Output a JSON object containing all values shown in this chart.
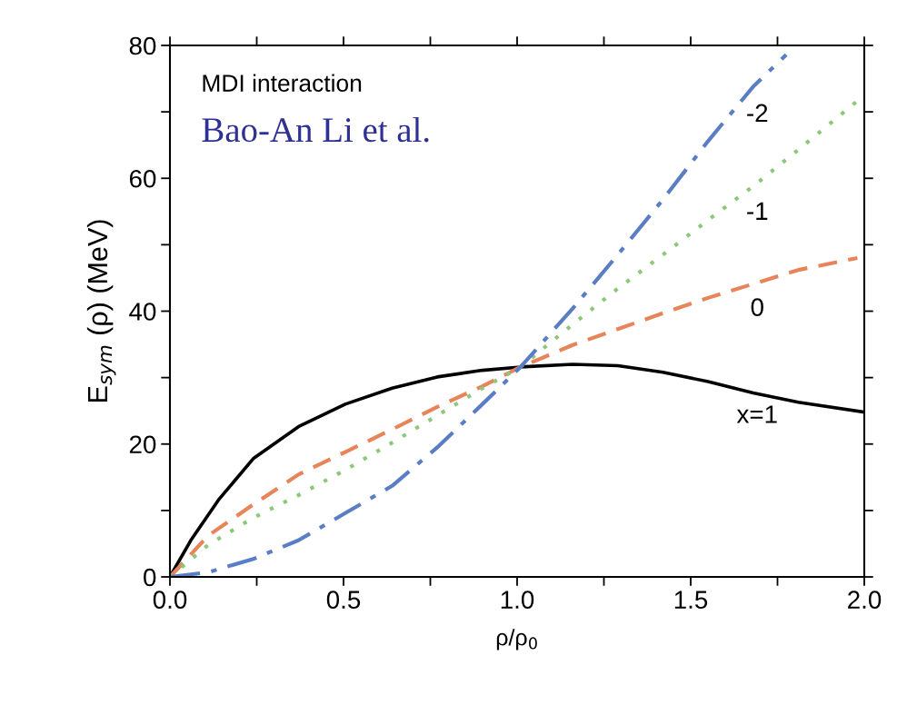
{
  "chart_data": {
    "type": "line",
    "xlabel": "ρ/ρ$_{0}$",
    "ylabel": "E$_{sym}$ (ρ) (MeV)",
    "xlim": [
      0,
      2.0
    ],
    "ylim": [
      0,
      80
    ],
    "xticks": [
      {
        "value": 0,
        "label": "0.0"
      },
      {
        "value": 0.25,
        "label": null
      },
      {
        "value": 0.5,
        "label": "0.5"
      },
      {
        "value": 0.75,
        "label": null
      },
      {
        "value": 1.0,
        "label": "1.0"
      },
      {
        "value": 1.25,
        "label": null
      },
      {
        "value": 1.5,
        "label": "1.5"
      },
      {
        "value": 1.75,
        "label": null
      },
      {
        "value": 2.0,
        "label": "2.0"
      }
    ],
    "yticks": [
      0,
      {
        "value": 10,
        "label": null
      },
      20,
      {
        "value": 30,
        "label": null
      },
      40,
      {
        "value": 50,
        "label": null
      },
      60,
      {
        "value": 70,
        "label": null
      },
      80
    ],
    "grid": false,
    "legend": false,
    "series": [
      {
        "name": "x=1",
        "color": "#000000",
        "line_style": "solid",
        "x": [
          0,
          0.06,
          0.14,
          0.24,
          0.37,
          0.505,
          0.64,
          0.77,
          0.9,
          1.01,
          1.16,
          1.29,
          1.42,
          1.55,
          1.68,
          1.81,
          2.0
        ],
        "values": [
          0,
          5.5,
          11.6,
          17.8,
          22.6,
          26,
          28.4,
          30.1,
          31.1,
          31.6,
          32,
          31.8,
          30.8,
          29.4,
          27.7,
          26.3,
          24.8
        ]
      },
      {
        "name": "0",
        "color": "#e8845a",
        "line_style": "dashed",
        "x": [
          0,
          0.11,
          0.24,
          0.37,
          0.505,
          0.64,
          0.77,
          0.9,
          1.01,
          1.16,
          1.29,
          1.42,
          1.55,
          1.68,
          1.81,
          1.98
        ],
        "values": [
          0,
          6.2,
          10.9,
          15.4,
          18.8,
          22.2,
          25.6,
          28.7,
          31.6,
          34.9,
          37.3,
          39.7,
          42,
          44.1,
          46.2,
          48
        ]
      },
      {
        "name": "-1",
        "color": "#8cc77a",
        "line_style": "dotted",
        "x": [
          0,
          0.11,
          0.24,
          0.37,
          0.505,
          0.64,
          0.77,
          0.9,
          1.01,
          1.16,
          1.29,
          1.42,
          1.55,
          1.68,
          1.81,
          2.0
        ],
        "values": [
          0,
          4.8,
          8.9,
          12.3,
          16.1,
          20.2,
          24.3,
          28.4,
          31.6,
          38,
          43.4,
          48.5,
          53.7,
          58.8,
          64.3,
          72.5
        ]
      },
      {
        "name": "-2",
        "color": "#5a7ec4",
        "line_style": "dashdot",
        "x": [
          0,
          0.11,
          0.24,
          0.37,
          0.505,
          0.64,
          0.77,
          0.9,
          1.01,
          1.16,
          1.29,
          1.42,
          1.55,
          1.68,
          1.775
        ],
        "values": [
          0,
          0.7,
          2.7,
          5.5,
          9.6,
          13.7,
          19.5,
          26,
          31.6,
          40.4,
          48.5,
          56.8,
          65.6,
          73.8,
          78.6
        ]
      }
    ],
    "annotations": [
      "MDI interaction",
      "Bao-An Li et al."
    ]
  }
}
